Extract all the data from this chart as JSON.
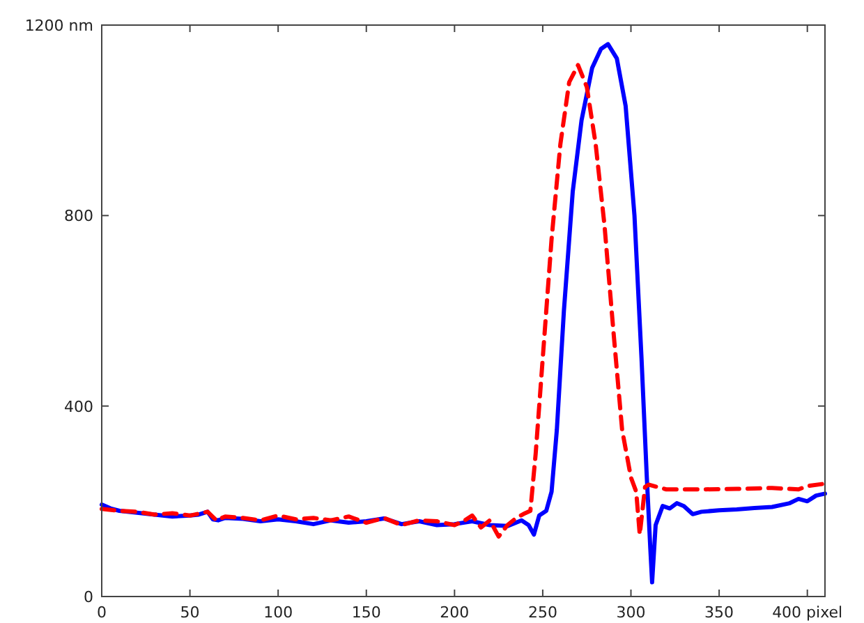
{
  "chart_data": {
    "type": "line",
    "xlim": [
      0,
      410
    ],
    "ylim": [
      0,
      1200
    ],
    "xticks": [
      0,
      50,
      100,
      150,
      200,
      250,
      300,
      350,
      {
        "value": 400,
        "label": "400 pixel"
      }
    ],
    "yticks": [
      0,
      400,
      800,
      {
        "value": 1200,
        "label": "1200 nm"
      }
    ],
    "grid": false,
    "series": [
      {
        "color": "#0000ff",
        "line_style": "solid",
        "x": [
          0,
          5,
          10,
          20,
          30,
          40,
          50,
          55,
          60,
          63,
          66,
          70,
          80,
          90,
          100,
          110,
          120,
          130,
          140,
          150,
          160,
          170,
          180,
          190,
          200,
          210,
          220,
          230,
          238,
          242,
          245,
          248,
          252,
          255,
          258,
          262,
          267,
          272,
          278,
          283,
          287,
          292,
          297,
          302,
          306,
          309,
          311,
          312,
          314,
          318,
          322,
          326,
          330,
          335,
          340,
          350,
          360,
          370,
          380,
          390,
          395,
          400,
          405,
          410
        ],
        "values": [
          193,
          185,
          180,
          176,
          172,
          168,
          170,
          172,
          178,
          162,
          160,
          165,
          163,
          158,
          162,
          158,
          152,
          160,
          155,
          158,
          164,
          152,
          158,
          150,
          152,
          158,
          150,
          148,
          160,
          150,
          130,
          170,
          180,
          220,
          350,
          600,
          850,
          1000,
          1110,
          1150,
          1160,
          1130,
          1030,
          800,
          500,
          250,
          100,
          30,
          150,
          190,
          185,
          196,
          190,
          173,
          178,
          181,
          183,
          186,
          188,
          196,
          205,
          200,
          212,
          216
        ]
      },
      {
        "color": "#ff0000",
        "line_style": "dashed",
        "x": [
          0,
          10,
          20,
          30,
          40,
          50,
          60,
          65,
          70,
          80,
          90,
          100,
          110,
          120,
          130,
          140,
          150,
          160,
          170,
          180,
          190,
          200,
          205,
          210,
          215,
          220,
          225,
          230,
          235,
          240,
          243,
          246,
          250,
          255,
          260,
          265,
          270,
          275,
          280,
          285,
          290,
          295,
          300,
          303,
          305,
          308,
          310,
          320,
          340,
          360,
          380,
          395,
          400,
          410
        ],
        "values": [
          184,
          180,
          178,
          172,
          175,
          170,
          178,
          160,
          168,
          165,
          160,
          170,
          162,
          165,
          160,
          168,
          155,
          165,
          150,
          160,
          158,
          150,
          158,
          170,
          145,
          160,
          126,
          150,
          165,
          175,
          180,
          300,
          500,
          750,
          950,
          1080,
          1116,
          1070,
          950,
          780,
          560,
          350,
          250,
          220,
          130,
          230,
          235,
          225,
          225,
          226,
          228,
          225,
          232,
          237
        ]
      }
    ]
  }
}
